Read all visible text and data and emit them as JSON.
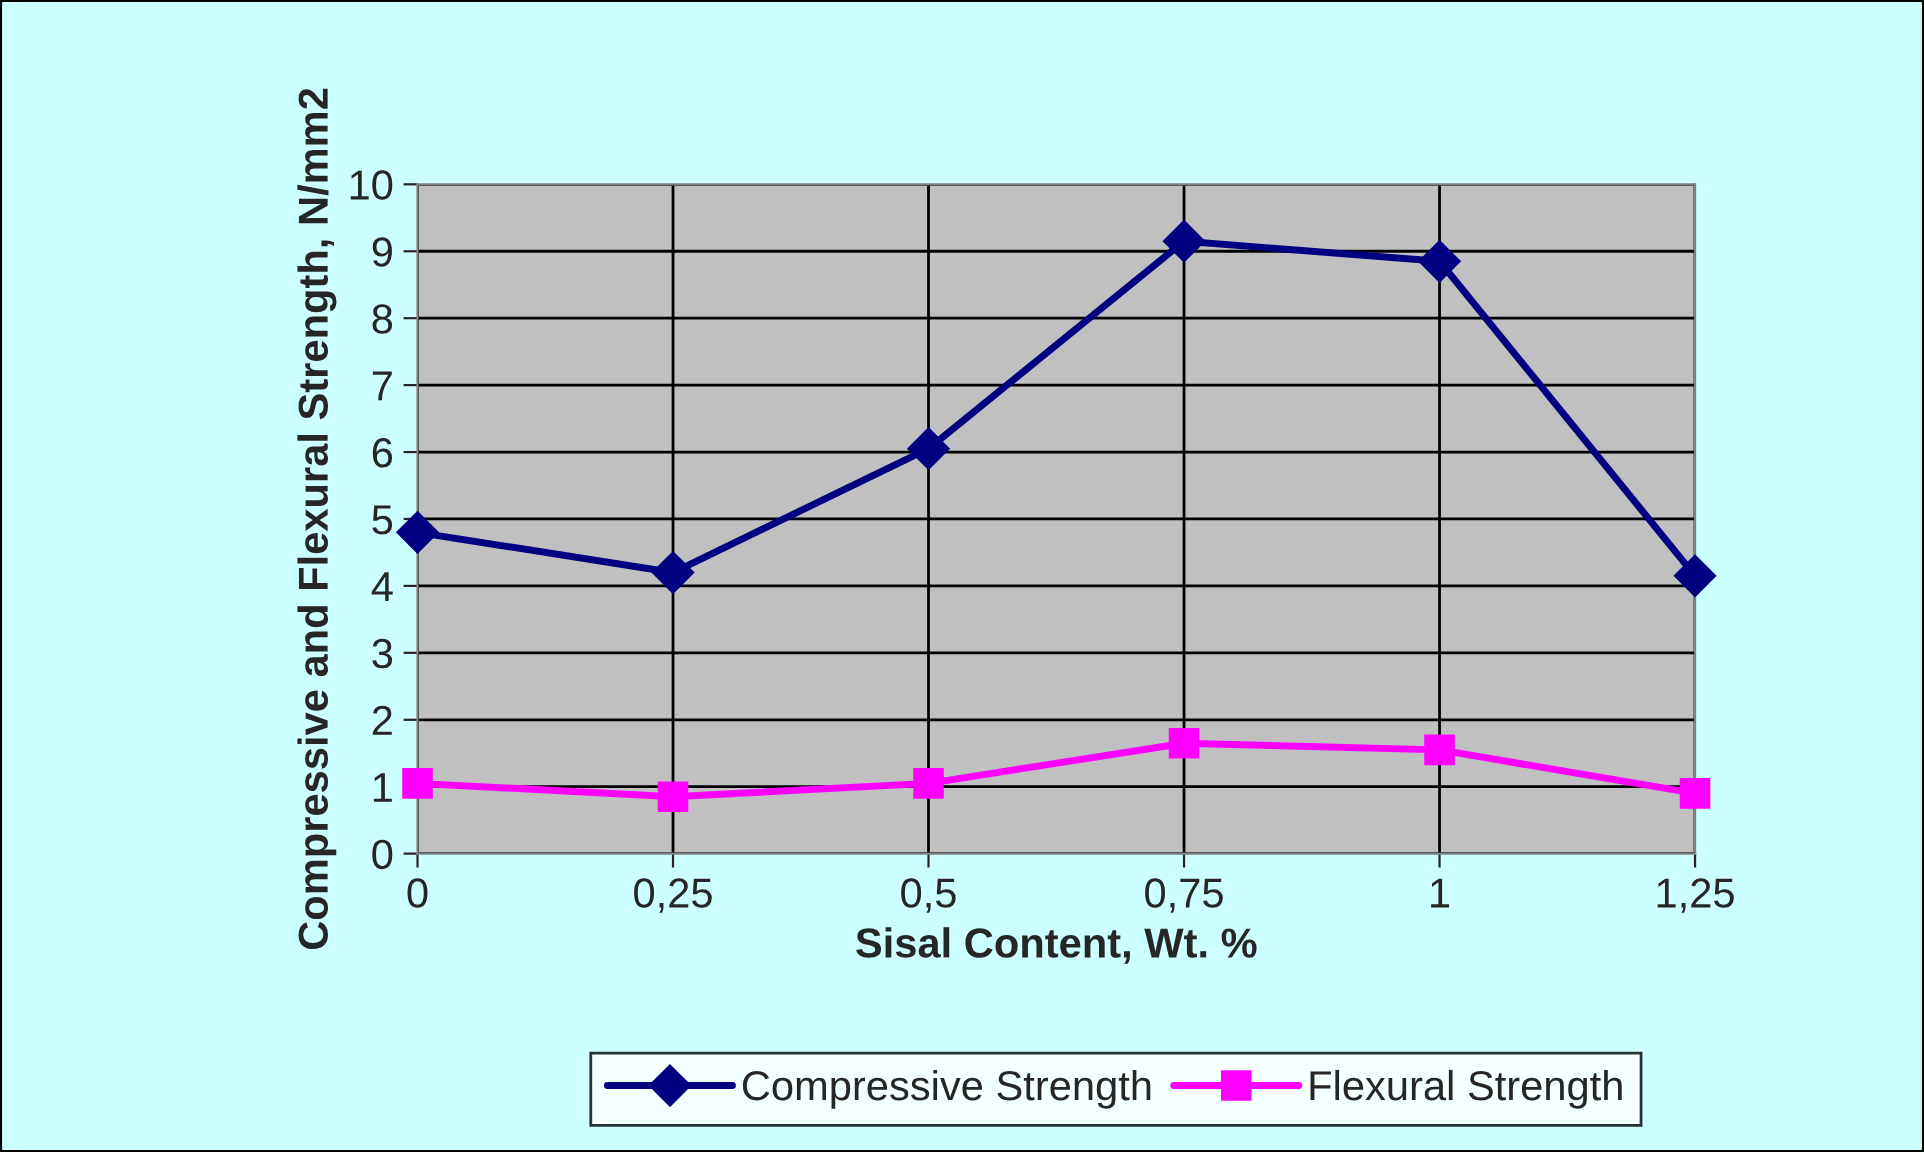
{
  "chart_data": {
    "type": "line",
    "xlabel": "Sisal Content, Wt. %",
    "ylabel": "Compressive and Flexural Strength, N/mm2",
    "x": [
      0,
      0.25,
      0.5,
      0.75,
      1,
      1.25
    ],
    "xlim": [
      0,
      1.25
    ],
    "xticks": [
      0,
      {
        "value": 0.25,
        "label": "0,25"
      },
      {
        "value": 0.5,
        "label": "0,5"
      },
      {
        "value": 0.75,
        "label": "0,75"
      },
      1,
      {
        "value": 1.25,
        "label": "1,25"
      }
    ],
    "ylim": [
      0,
      10
    ],
    "yticks": [
      0,
      1,
      2,
      3,
      4,
      5,
      6,
      7,
      8,
      9,
      10
    ],
    "grid": true,
    "legend": "bottom",
    "series": [
      {
        "name": "Compressive Strength",
        "color": "#000080",
        "marker": "diamond",
        "values": [
          4.8,
          4.2,
          6.05,
          9.15,
          8.85,
          4.15
        ]
      },
      {
        "name": "Flexural Strength",
        "color": "#ff00ff",
        "marker": "square",
        "values": [
          1.05,
          0.85,
          1.05,
          1.65,
          1.55,
          0.9
        ]
      }
    ]
  }
}
